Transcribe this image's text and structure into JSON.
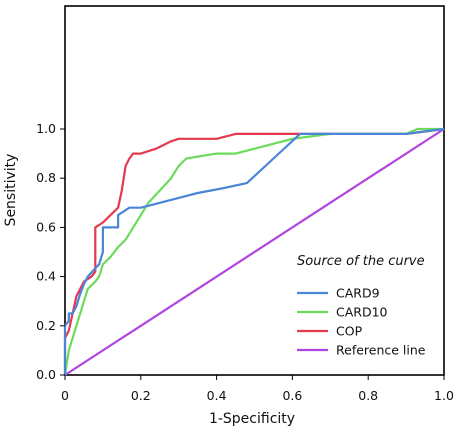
{
  "chart_data": {
    "type": "line",
    "xlabel": "1-Specificity",
    "ylabel": "Sensitivity",
    "xlim": [
      0,
      1
    ],
    "ylim": [
      0,
      1.5
    ],
    "x_ticks": [
      {
        "value": 0,
        "label": "0"
      },
      {
        "value": 0.2,
        "label": "0.2"
      },
      {
        "value": 0.4,
        "label": "0.4"
      },
      {
        "value": 0.6,
        "label": "0.6"
      },
      {
        "value": 0.8,
        "label": "0.8"
      },
      {
        "value": 1.0,
        "label": "1.0"
      }
    ],
    "y_ticks": [
      {
        "value": 0,
        "label": "0.0"
      },
      {
        "value": 0.2,
        "label": "0.2"
      },
      {
        "value": 0.4,
        "label": "0.4"
      },
      {
        "value": 0.6,
        "label": "0.6"
      },
      {
        "value": 0.8,
        "label": "0.8"
      },
      {
        "value": 1.0,
        "label": "1.0"
      }
    ],
    "grid": false,
    "legend": {
      "title": "Source of the curve",
      "placement": "bottom-right"
    },
    "series": [
      {
        "name": "CARD9",
        "color": "#4a86d8",
        "x": [
          0,
          0,
          0.01,
          0.01,
          0.02,
          0.03,
          0.04,
          0.05,
          0.06,
          0.09,
          0.1,
          0.1,
          0.14,
          0.14,
          0.17,
          0.2,
          0.25,
          0.3,
          0.35,
          0.42,
          0.48,
          0.55,
          0.62,
          0.7,
          0.8,
          0.9,
          1.0
        ],
        "y": [
          0,
          0.2,
          0.22,
          0.25,
          0.25,
          0.28,
          0.33,
          0.37,
          0.4,
          0.45,
          0.5,
          0.6,
          0.6,
          0.65,
          0.68,
          0.68,
          0.7,
          0.72,
          0.74,
          0.76,
          0.78,
          0.88,
          0.98,
          0.98,
          0.98,
          0.98,
          1.0
        ]
      },
      {
        "name": "CARD10",
        "color": "#6bdc5a",
        "x": [
          0,
          0.01,
          0.02,
          0.03,
          0.04,
          0.05,
          0.06,
          0.08,
          0.09,
          0.1,
          0.12,
          0.14,
          0.16,
          0.18,
          0.2,
          0.22,
          0.25,
          0.28,
          0.3,
          0.32,
          0.4,
          0.45,
          0.5,
          0.6,
          0.7,
          0.8,
          0.9,
          0.93,
          1.0
        ],
        "y": [
          0,
          0.1,
          0.15,
          0.2,
          0.25,
          0.3,
          0.35,
          0.38,
          0.4,
          0.45,
          0.48,
          0.52,
          0.55,
          0.6,
          0.65,
          0.7,
          0.75,
          0.8,
          0.85,
          0.88,
          0.9,
          0.9,
          0.92,
          0.96,
          0.98,
          0.98,
          0.98,
          1.0,
          1.0
        ]
      },
      {
        "name": "COP",
        "color": "#e5394d",
        "x": [
          0,
          0,
          0.01,
          0.02,
          0.03,
          0.04,
          0.05,
          0.07,
          0.08,
          0.08,
          0.1,
          0.12,
          0.14,
          0.15,
          0.16,
          0.17,
          0.18,
          0.2,
          0.24,
          0.28,
          0.3,
          0.35,
          0.4,
          0.45,
          0.5,
          0.6,
          0.7,
          0.8,
          0.9,
          1.0
        ],
        "y": [
          0,
          0.15,
          0.18,
          0.25,
          0.32,
          0.35,
          0.38,
          0.4,
          0.42,
          0.6,
          0.62,
          0.65,
          0.68,
          0.75,
          0.85,
          0.88,
          0.9,
          0.9,
          0.92,
          0.95,
          0.96,
          0.96,
          0.96,
          0.98,
          0.98,
          0.98,
          0.98,
          0.98,
          0.98,
          1.0
        ]
      },
      {
        "name": "Reference line",
        "color": "#b044e0",
        "x": [
          0,
          1
        ],
        "y": [
          0,
          1
        ]
      }
    ]
  }
}
